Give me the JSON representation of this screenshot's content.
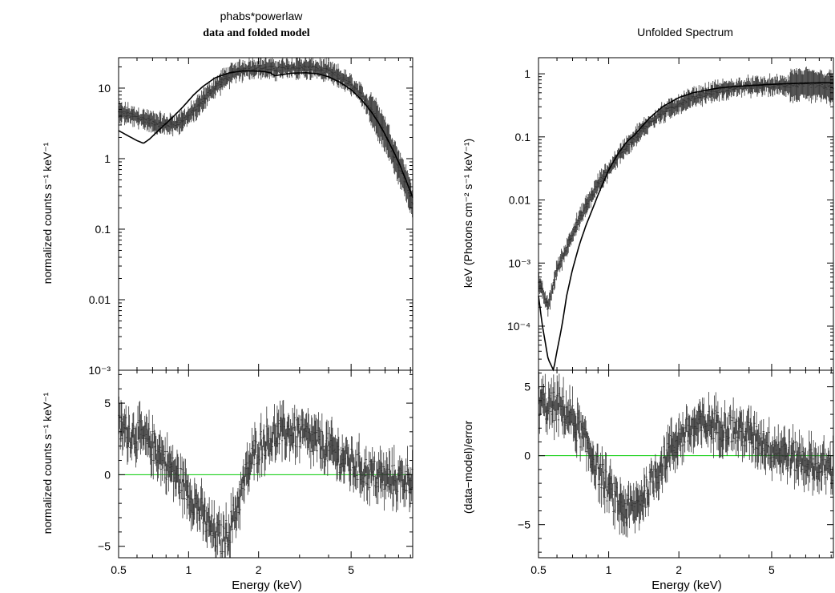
{
  "chart_data": [
    {
      "type": "scatter",
      "title": "phabs*powerlaw",
      "subtitle": "data and folded model",
      "upper": {
        "ylabel": "normalized counts s⁻¹ keV⁻¹",
        "xscale": "log",
        "yscale": "log",
        "xlim": [
          0.5,
          9.2
        ],
        "ylim": [
          0.001,
          27
        ],
        "yticks": [
          {
            "label": "10",
            "value": 10
          },
          {
            "label": "1",
            "value": 1
          },
          {
            "label": "0.1",
            "value": 0.1
          },
          {
            "label": "0.01",
            "value": 0.01
          },
          {
            "label": "10⁻³",
            "value": 0.001
          }
        ],
        "series": [
          {
            "kind": "data",
            "color": "#333333",
            "x": [
              0.5,
              0.55,
              0.6,
              0.65,
              0.7,
              0.8,
              0.9,
              1.0,
              1.1,
              1.2,
              1.4,
              1.6,
              1.8,
              2.0,
              2.2,
              2.4,
              2.7,
              3.0,
              3.5,
              4.0,
              4.5,
              5.0,
              5.5,
              6.0,
              6.5,
              7.0,
              7.5,
              8.0,
              8.5,
              9.0,
              9.2
            ],
            "y": [
              4.5,
              4.2,
              3.8,
              3.6,
              3.3,
              3.0,
              3.2,
              4.0,
              5.5,
              8.0,
              13,
              17,
              19,
              19.5,
              19,
              18.5,
              19,
              19.5,
              19,
              17,
              14,
              11,
              8,
              5.5,
              3.6,
              2.2,
              1.3,
              0.8,
              0.5,
              0.3,
              0.22
            ]
          },
          {
            "kind": "model",
            "color": "#000000",
            "x": [
              0.5,
              0.55,
              0.6,
              0.64,
              0.68,
              0.75,
              0.85,
              0.95,
              1.05,
              1.15,
              1.3,
              1.5,
              1.7,
              1.9,
              2.1,
              2.25,
              2.35,
              2.5,
              2.8,
              3.2,
              3.6,
              4.0,
              4.5,
              5.0,
              5.5,
              6.0,
              6.5,
              7.0,
              7.5,
              8.0,
              8.5,
              9.0,
              9.2
            ],
            "y": [
              2.5,
              2.1,
              1.8,
              1.65,
              1.9,
              2.6,
              3.8,
              5.5,
              8.0,
              10.5,
              14,
              16.5,
              17.5,
              17.5,
              17.2,
              16.5,
              15,
              15.5,
              16.3,
              16.5,
              16,
              14.5,
              12,
              9.5,
              7.0,
              5.0,
              3.4,
              2.2,
              1.4,
              0.9,
              0.55,
              0.34,
              0.28
            ]
          }
        ]
      },
      "lower": {
        "ylabel": "normalized counts s⁻¹ keV⁻¹",
        "xlabel": "Energy (keV)",
        "xscale": "log",
        "xlim": [
          0.5,
          9.2
        ],
        "ylim": [
          -5.8,
          7.3
        ],
        "yticks": [
          {
            "label": "5",
            "value": 5
          },
          {
            "label": "0",
            "value": 0
          },
          {
            "label": "−5",
            "value": -5
          }
        ],
        "xticks": [
          {
            "label": "0.5",
            "value": 0.5
          },
          {
            "label": "1",
            "value": 1
          },
          {
            "label": "2",
            "value": 2
          },
          {
            "label": "5",
            "value": 5
          }
        ],
        "zero_line_color": "#00cc00",
        "series": [
          {
            "kind": "residuals",
            "color": "#333333",
            "x": [
              0.5,
              0.55,
              0.6,
              0.65,
              0.7,
              0.75,
              0.8,
              0.85,
              0.9,
              1.0,
              1.1,
              1.2,
              1.3,
              1.4,
              1.5,
              1.6,
              1.7,
              1.8,
              1.9,
              2.0,
              2.2,
              2.4,
              2.7,
              3.0,
              3.3,
              3.6,
              4.0,
              4.5,
              5.0,
              5.5,
              6.0,
              7.0,
              8.0,
              9.0,
              9.2
            ],
            "y": [
              3.2,
              3.0,
              2.8,
              2.4,
              2.0,
              1.5,
              0.8,
              0.3,
              -0.2,
              -1.2,
              -2.3,
              -3.4,
              -4.2,
              -4.6,
              -3.8,
              -2.5,
              -1.0,
              0.3,
              1.3,
              2.0,
              2.5,
              2.8,
              3.0,
              2.8,
              2.5,
              2.2,
              1.8,
              1.2,
              0.8,
              0.4,
              0.1,
              -0.3,
              -0.4,
              -0.2,
              -0.1
            ]
          }
        ]
      }
    },
    {
      "type": "scatter",
      "title": "Unfolded Spectrum",
      "upper": {
        "ylabel": "keV (Photons cm⁻² s⁻¹ keV⁻¹)",
        "xscale": "log",
        "yscale": "log",
        "xlim": [
          0.5,
          9.2
        ],
        "ylim": [
          2e-05,
          1.8
        ],
        "yticks": [
          {
            "label": "1",
            "value": 1
          },
          {
            "label": "0.1",
            "value": 0.1
          },
          {
            "label": "0.01",
            "value": 0.01
          },
          {
            "label": "10⁻³",
            "value": 0.001
          },
          {
            "label": "10⁻⁴",
            "value": 0.0001
          }
        ],
        "series": [
          {
            "kind": "data",
            "color": "#333333",
            "x": [
              0.5,
              0.55,
              0.6,
              0.65,
              0.7,
              0.75,
              0.8,
              0.85,
              0.9,
              1.0,
              1.1,
              1.2,
              1.3,
              1.5,
              1.7,
              2.0,
              2.3,
              2.7,
              3.0,
              3.5,
              4.0,
              5.0,
              6.0,
              7.0,
              8.0,
              9.0,
              9.2
            ],
            "y": [
              0.0005,
              0.0002,
              0.0008,
              0.0015,
              0.003,
              0.005,
              0.008,
              0.012,
              0.018,
              0.03,
              0.05,
              0.075,
              0.1,
              0.17,
              0.24,
              0.33,
              0.42,
              0.5,
              0.55,
              0.6,
              0.63,
              0.65,
              0.66,
              0.67,
              0.65,
              0.6,
              0.58
            ]
          },
          {
            "kind": "model",
            "color": "#000000",
            "x": [
              0.5,
              0.52,
              0.55,
              0.58,
              0.6,
              0.63,
              0.66,
              0.7,
              0.75,
              0.8,
              0.85,
              0.9,
              1.0,
              1.1,
              1.2,
              1.3,
              1.35,
              1.5,
              1.7,
              2.0,
              2.3,
              2.7,
              3.0,
              3.5,
              4.0,
              5.0,
              6.0,
              7.0,
              8.0,
              9.0,
              9.2
            ],
            "y": [
              0.0003,
              0.0001,
              3e-05,
              2e-05,
              4e-05,
              0.0001,
              0.0003,
              0.0008,
              0.002,
              0.004,
              0.007,
              0.012,
              0.03,
              0.055,
              0.085,
              0.11,
              0.13,
              0.2,
              0.3,
              0.42,
              0.5,
              0.56,
              0.6,
              0.63,
              0.65,
              0.68,
              0.7,
              0.71,
              0.72,
              0.72,
              0.72
            ]
          }
        ]
      },
      "lower": {
        "ylabel": "(data−model)/error",
        "xlabel": "Energy (keV)",
        "xscale": "log",
        "xlim": [
          0.5,
          9.2
        ],
        "ylim": [
          -7.4,
          6.2
        ],
        "yticks": [
          {
            "label": "5",
            "value": 5
          },
          {
            "label": "0",
            "value": 0
          },
          {
            "label": "−5",
            "value": -5
          }
        ],
        "xticks": [
          {
            "label": "0.5",
            "value": 0.5
          },
          {
            "label": "1",
            "value": 1
          },
          {
            "label": "2",
            "value": 2
          },
          {
            "label": "5",
            "value": 5
          }
        ],
        "zero_line_color": "#00cc00",
        "series": [
          {
            "kind": "residuals",
            "color": "#333333",
            "x": [
              0.5,
              0.55,
              0.6,
              0.65,
              0.7,
              0.75,
              0.8,
              0.85,
              0.9,
              1.0,
              1.1,
              1.2,
              1.3,
              1.4,
              1.5,
              1.6,
              1.7,
              1.8,
              1.9,
              2.0,
              2.2,
              2.5,
              2.8,
              3.2,
              3.6,
              4.0,
              4.5,
              5.0,
              5.5,
              6.0,
              7.0,
              8.0,
              9.0,
              9.2
            ],
            "y": [
              4.0,
              3.5,
              3.6,
              3.2,
              2.6,
              1.8,
              0.8,
              0.0,
              -1.0,
              -2.5,
              -3.5,
              -4.0,
              -3.8,
              -3.0,
              -2.2,
              -1.3,
              -0.6,
              0.2,
              0.8,
              1.3,
              1.8,
              2.2,
              2.3,
              2.1,
              1.8,
              1.5,
              1.1,
              0.6,
              0.3,
              0.0,
              -0.4,
              -0.8,
              -0.9,
              -0.9
            ]
          }
        ]
      }
    }
  ]
}
